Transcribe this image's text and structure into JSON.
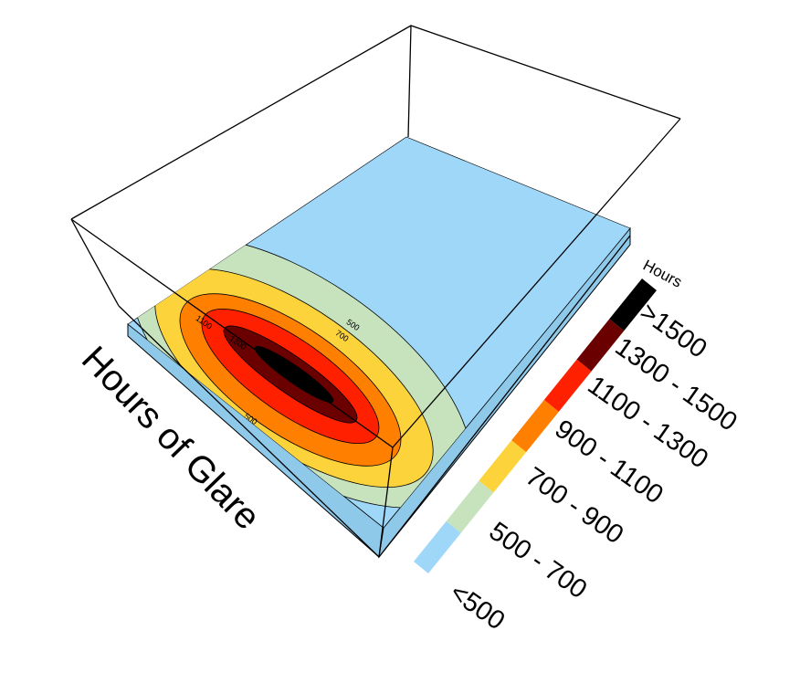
{
  "chart_data": {
    "type": "contour3d",
    "title": "Hours of Glare",
    "legend": {
      "title": "Hours",
      "entries": [
        {
          "label": "<500",
          "color": "#9fd7f9"
        },
        {
          "label": "500 - 700",
          "color": "#c6e3bd"
        },
        {
          "label": "700 - 900",
          "color": "#fdd33b"
        },
        {
          "label": "900 - 1100",
          "color": "#ff7f00"
        },
        {
          "label": "1100 - 1300",
          "color": "#ff2000"
        },
        {
          "label": "1300 - 1500",
          "color": "#6b0000"
        },
        {
          "label": ">1500",
          "color": "#000000"
        }
      ]
    },
    "contour_labels": [
      500,
      700,
      1100,
      1300,
      500
    ]
  }
}
